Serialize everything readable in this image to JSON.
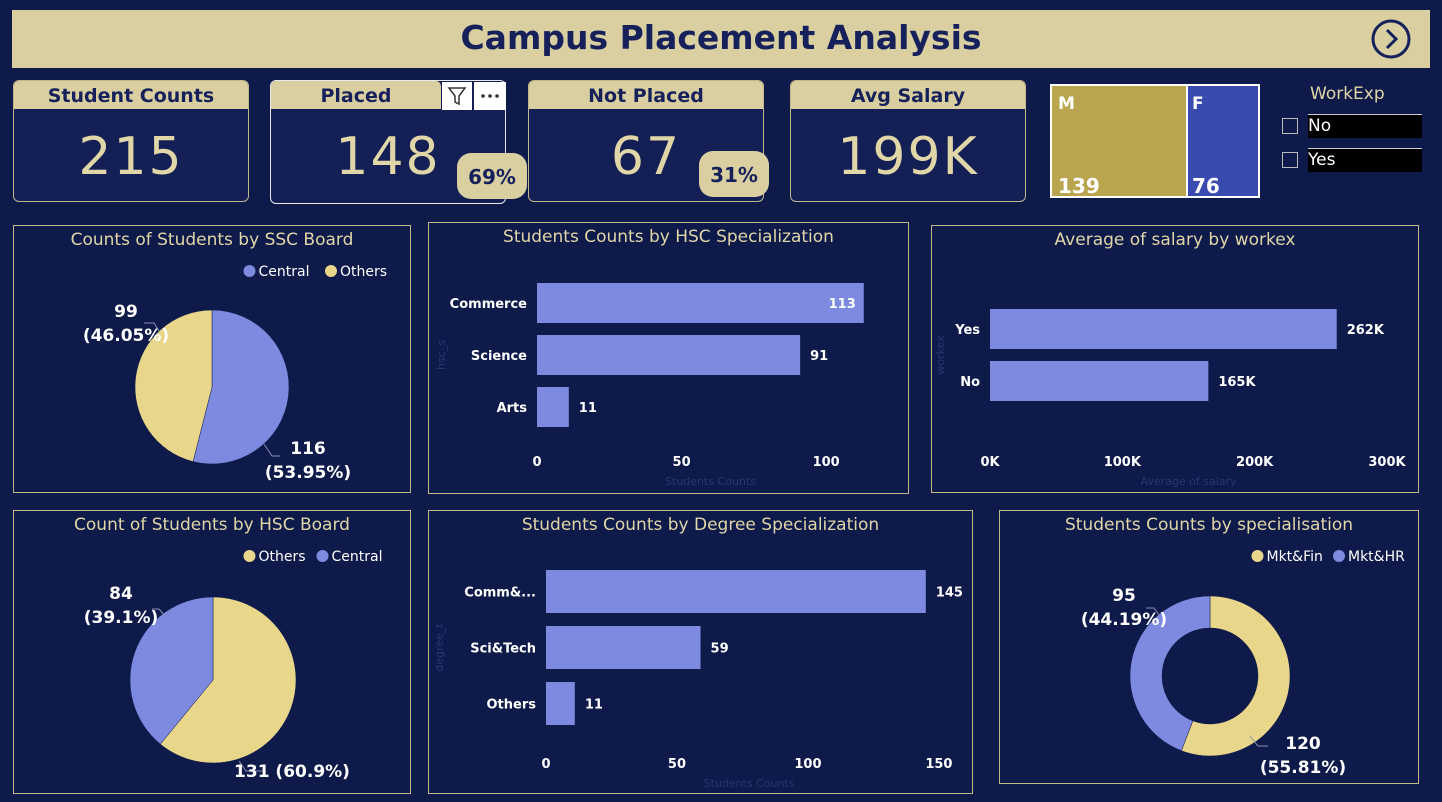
{
  "header": {
    "title": "Campus Placement Analysis"
  },
  "kpis": {
    "student_counts": {
      "label": "Student Counts",
      "value": "215"
    },
    "placed": {
      "label": "Placed",
      "value": "148",
      "pct": "69%"
    },
    "not_placed": {
      "label": "Not Placed",
      "value": "67",
      "pct": "31%"
    },
    "avg_salary": {
      "label": "Avg Salary",
      "value": "199K"
    }
  },
  "gender": {
    "m_label": "M",
    "m_value": "139",
    "f_label": "F",
    "f_value": "76"
  },
  "workexp_slicer": {
    "title": "WorkExp",
    "options": [
      "No",
      "Yes"
    ]
  },
  "colors": {
    "gold": "#e8d68a",
    "blue": "#7d8ae0",
    "bg": "#0e1a4a",
    "accent": "#d9cfa0"
  },
  "chart_data": [
    {
      "type": "pie",
      "title": "Counts of Students by SSC Board",
      "legend": [
        "Central",
        "Others"
      ],
      "slices": [
        {
          "name": "Central",
          "value": 116,
          "label": "116",
          "pct": "(53.95%)",
          "color": "#7d8ae0"
        },
        {
          "name": "Others",
          "value": 99,
          "label": "99",
          "pct": "(46.05%)",
          "color": "#e8d68a"
        }
      ]
    },
    {
      "type": "bar",
      "title": "Students Counts by HSC Specialization",
      "categories": [
        "Commerce",
        "Science",
        "Arts"
      ],
      "values": [
        113,
        91,
        11
      ],
      "xticks": [
        "0",
        "50",
        "100"
      ],
      "xlim": [
        0,
        120
      ],
      "xlabel": "Students Counts",
      "ylabel": "hsc_s"
    },
    {
      "type": "bar",
      "title": "Average of salary by workex",
      "categories": [
        "Yes",
        "No"
      ],
      "values": [
        262000,
        165000
      ],
      "value_labels": [
        "262K",
        "165K"
      ],
      "xticks": [
        "0K",
        "100K",
        "200K",
        "300K"
      ],
      "xlim": [
        0,
        300000
      ],
      "xlabel": "Average of salary",
      "ylabel": "workex"
    },
    {
      "type": "pie",
      "title": "Count of Students by HSC Board",
      "legend": [
        "Others",
        "Central"
      ],
      "slices": [
        {
          "name": "Others",
          "value": 131,
          "label": "131 (60.9%)",
          "color": "#e8d68a"
        },
        {
          "name": "Central",
          "value": 84,
          "label": "84",
          "pct": "(39.1%)",
          "color": "#7d8ae0"
        }
      ]
    },
    {
      "type": "bar",
      "title": "Students Counts by Degree Specialization",
      "categories": [
        "Comm&...",
        "Sci&Tech",
        "Others"
      ],
      "values": [
        145,
        59,
        11
      ],
      "xticks": [
        "0",
        "50",
        "100",
        "150"
      ],
      "xlim": [
        0,
        155
      ],
      "xlabel": "Students Counts",
      "ylabel": "degree_t"
    },
    {
      "type": "pie",
      "title": "Students Counts by specialisation",
      "legend": [
        "Mkt&Fin",
        "Mkt&HR"
      ],
      "slices": [
        {
          "name": "Mkt&Fin",
          "value": 120,
          "label": "120",
          "pct": "(55.81%)",
          "color": "#e8d68a"
        },
        {
          "name": "Mkt&HR",
          "value": 95,
          "label": "95",
          "pct": "(44.19%)",
          "color": "#7d8ae0"
        }
      ]
    }
  ]
}
